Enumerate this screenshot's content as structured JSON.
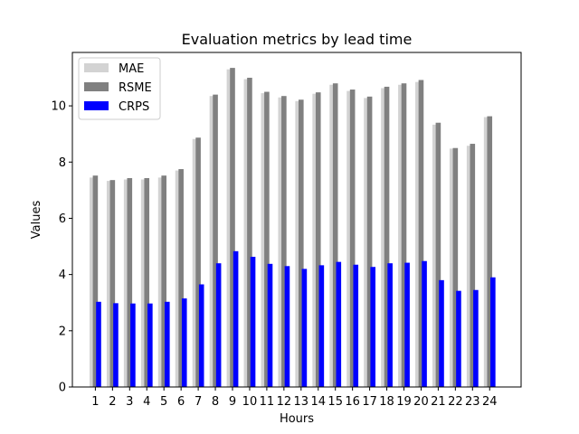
{
  "chart_data": {
    "type": "bar",
    "title": "Evaluation metrics by lead time",
    "xlabel": "Hours",
    "ylabel": "Values",
    "categories": [
      "1",
      "2",
      "3",
      "4",
      "5",
      "6",
      "7",
      "8",
      "9",
      "10",
      "11",
      "12",
      "13",
      "14",
      "15",
      "16",
      "17",
      "18",
      "19",
      "20",
      "21",
      "22",
      "23",
      "24"
    ],
    "ylim": [
      0,
      11.9
    ],
    "yticks": [
      0,
      2,
      4,
      6,
      8,
      10
    ],
    "grid": false,
    "legend_position": "top-left",
    "series": [
      {
        "name": "MAE",
        "color": "#d3d3d3",
        "values": [
          7.45,
          7.33,
          7.38,
          7.38,
          7.45,
          7.7,
          8.82,
          10.35,
          11.3,
          10.95,
          10.45,
          10.3,
          10.17,
          10.43,
          10.75,
          10.53,
          10.28,
          10.63,
          10.75,
          10.85,
          9.33,
          8.48,
          8.58,
          9.6
        ]
      },
      {
        "name": "RSME",
        "color": "#808080",
        "values": [
          7.52,
          7.36,
          7.43,
          7.43,
          7.52,
          7.75,
          8.87,
          10.4,
          11.35,
          11.0,
          10.5,
          10.35,
          10.22,
          10.48,
          10.8,
          10.58,
          10.33,
          10.68,
          10.8,
          10.92,
          9.4,
          8.5,
          8.65,
          9.63
        ]
      },
      {
        "name": "CRPS",
        "color": "#0000ff",
        "values": [
          3.03,
          2.98,
          2.97,
          2.97,
          3.03,
          3.15,
          3.65,
          4.4,
          4.83,
          4.63,
          4.38,
          4.3,
          4.2,
          4.33,
          4.45,
          4.35,
          4.27,
          4.4,
          4.42,
          4.48,
          3.8,
          3.42,
          3.45,
          3.9
        ]
      }
    ]
  }
}
